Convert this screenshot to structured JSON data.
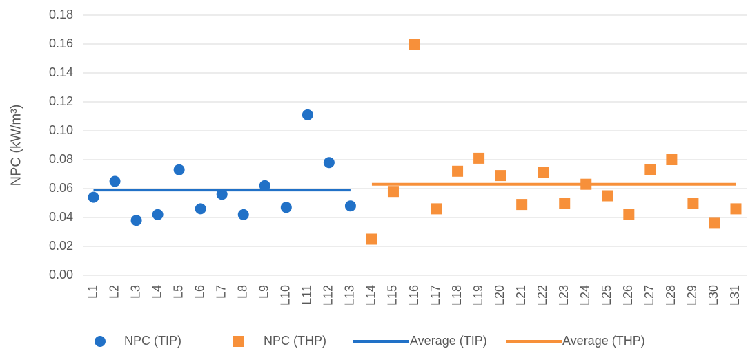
{
  "chart_data": {
    "type": "scatter",
    "ylabel": "NPC (kW/m³)",
    "categories": [
      "L1",
      "L2",
      "L3",
      "L4",
      "L5",
      "L6",
      "L7",
      "L8",
      "L9",
      "L10",
      "L11",
      "L12",
      "L13",
      "L14",
      "L15",
      "L16",
      "L17",
      "L18",
      "L19",
      "L20",
      "L21",
      "L22",
      "L23",
      "L24",
      "L25",
      "L26",
      "L27",
      "L28",
      "L29",
      "L30",
      "L31"
    ],
    "series": [
      {
        "name": "NPC (TIP)",
        "color": "#2171c7",
        "marker": "circle",
        "values": [
          0.054,
          0.065,
          0.038,
          0.042,
          0.073,
          0.046,
          0.056,
          0.042,
          0.062,
          0.047,
          0.111,
          0.078,
          0.048,
          null,
          null,
          null,
          null,
          null,
          null,
          null,
          null,
          null,
          null,
          null,
          null,
          null,
          null,
          null,
          null,
          null,
          null
        ]
      },
      {
        "name": "NPC (THP)",
        "color": "#f7903a",
        "marker": "square",
        "values": [
          null,
          null,
          null,
          null,
          null,
          null,
          null,
          null,
          null,
          null,
          null,
          null,
          null,
          0.025,
          0.058,
          0.16,
          0.046,
          0.072,
          0.081,
          0.069,
          0.049,
          0.071,
          0.05,
          0.063,
          0.055,
          0.042,
          0.073,
          0.08,
          0.05,
          0.036,
          0.046
        ]
      },
      {
        "name": "Average (TIP)",
        "color": "#2171c7",
        "marker": "line",
        "values": [
          0.059,
          0.059,
          0.059,
          0.059,
          0.059,
          0.059,
          0.059,
          0.059,
          0.059,
          0.059,
          0.059,
          0.059,
          0.059,
          null,
          null,
          null,
          null,
          null,
          null,
          null,
          null,
          null,
          null,
          null,
          null,
          null,
          null,
          null,
          null,
          null,
          null
        ]
      },
      {
        "name": "Average (THP)",
        "color": "#f7903a",
        "marker": "line",
        "values": [
          null,
          null,
          null,
          null,
          null,
          null,
          null,
          null,
          null,
          null,
          null,
          null,
          null,
          0.063,
          0.063,
          0.063,
          0.063,
          0.063,
          0.063,
          0.063,
          0.063,
          0.063,
          0.063,
          0.063,
          0.063,
          0.063,
          0.063,
          0.063,
          0.063,
          0.063,
          0.063
        ]
      }
    ],
    "ylim": [
      0,
      0.18
    ],
    "yticks": [
      {
        "value": 0,
        "label": "0.00"
      },
      {
        "value": 0.02,
        "label": "0.02"
      },
      {
        "value": 0.04,
        "label": "0.04"
      },
      {
        "value": 0.06,
        "label": "0.06"
      },
      {
        "value": 0.08,
        "label": "0.08"
      },
      {
        "value": 0.1,
        "label": "0.10"
      },
      {
        "value": 0.12,
        "label": "0.12"
      },
      {
        "value": 0.14,
        "label": "0.14"
      },
      {
        "value": 0.16,
        "label": "0.16"
      },
      {
        "value": 0.18,
        "label": "0.18"
      }
    ],
    "grid": true,
    "legend": "bottom"
  }
}
